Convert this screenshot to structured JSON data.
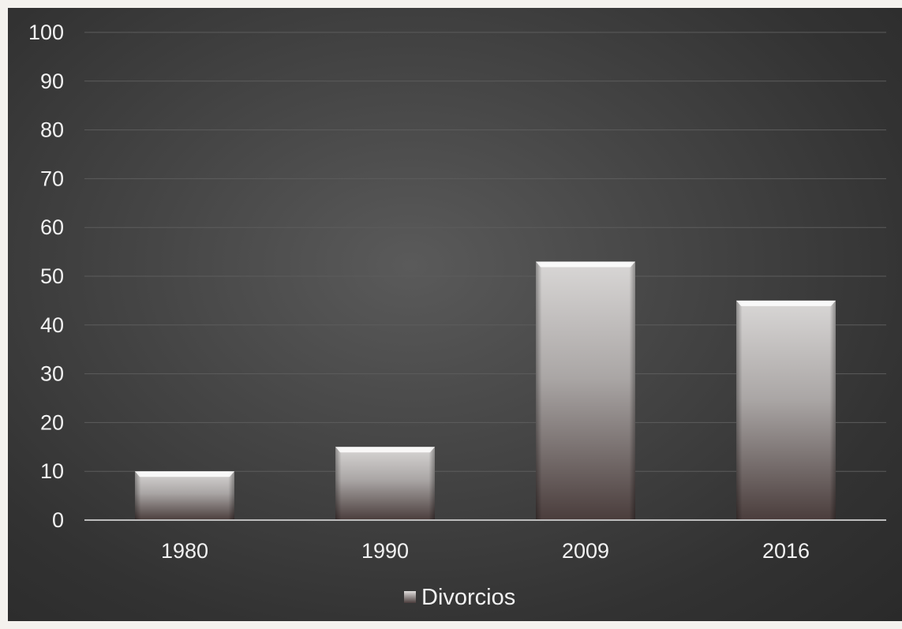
{
  "chart_data": {
    "type": "bar",
    "categories": [
      "1980",
      "1990",
      "2009",
      "2016"
    ],
    "series": [
      {
        "name": "Divorcios",
        "values": [
          10,
          15,
          53,
          45
        ]
      }
    ],
    "title": "",
    "xlabel": "",
    "ylabel": "",
    "ylim": [
      0,
      100
    ],
    "yticks": [
      "0",
      "10",
      "20",
      "30",
      "40",
      "50",
      "60",
      "70",
      "80",
      "90",
      "100"
    ],
    "grid": true,
    "legend": "bottom-center",
    "colors": {
      "background_center": "#5a5a5a",
      "background_edge": "#2a2a2a",
      "bar_top": "#d8d6d5",
      "bar_bottom": "#4a3d3c",
      "gridline": "#5c5c5c",
      "axis_line": "#bdbdbd",
      "text": "#f2f2f2"
    }
  }
}
